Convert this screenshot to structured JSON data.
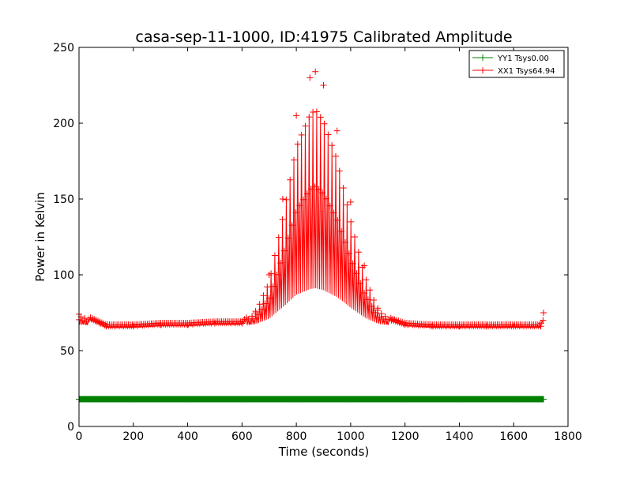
{
  "chart_data": {
    "type": "line",
    "title": "casa-sep-11-1000, ID:41975 Calibrated Amplitude",
    "xlabel": "Time (seconds)",
    "ylabel": "Power in Kelvin",
    "xlim": [
      0,
      1800
    ],
    "ylim": [
      0,
      250
    ],
    "xticks": [
      0,
      200,
      400,
      600,
      800,
      1000,
      1200,
      1400,
      1600,
      1800
    ],
    "yticks": [
      0,
      50,
      100,
      150,
      200,
      250
    ],
    "grid": false,
    "legend_position": "top-right",
    "series": [
      {
        "name": "YY1 Tsys0.00",
        "color": "#008000",
        "marker": "+",
        "x": [
          0,
          200,
          400,
          600,
          800,
          1000,
          1200,
          1400,
          1600,
          1710
        ],
        "y": [
          18,
          18,
          18,
          18,
          18,
          18,
          18,
          18,
          18,
          18
        ]
      },
      {
        "name": "XX1 Tsys64.94",
        "color": "#ff0000",
        "marker": "+",
        "x": [
          0,
          100,
          200,
          300,
          400,
          500,
          600,
          650,
          700,
          750,
          800,
          850,
          870,
          900,
          950,
          1000,
          1050,
          1100,
          1150,
          1200,
          1300,
          1400,
          1500,
          1600,
          1700,
          1710
        ],
        "y": [
          74,
          66,
          66,
          67,
          67,
          68,
          68,
          76,
          100,
          150,
          205,
          230,
          234,
          225,
          195,
          148,
          106,
          78,
          70,
          67,
          66,
          66,
          66,
          66,
          66,
          75
        ]
      }
    ]
  }
}
